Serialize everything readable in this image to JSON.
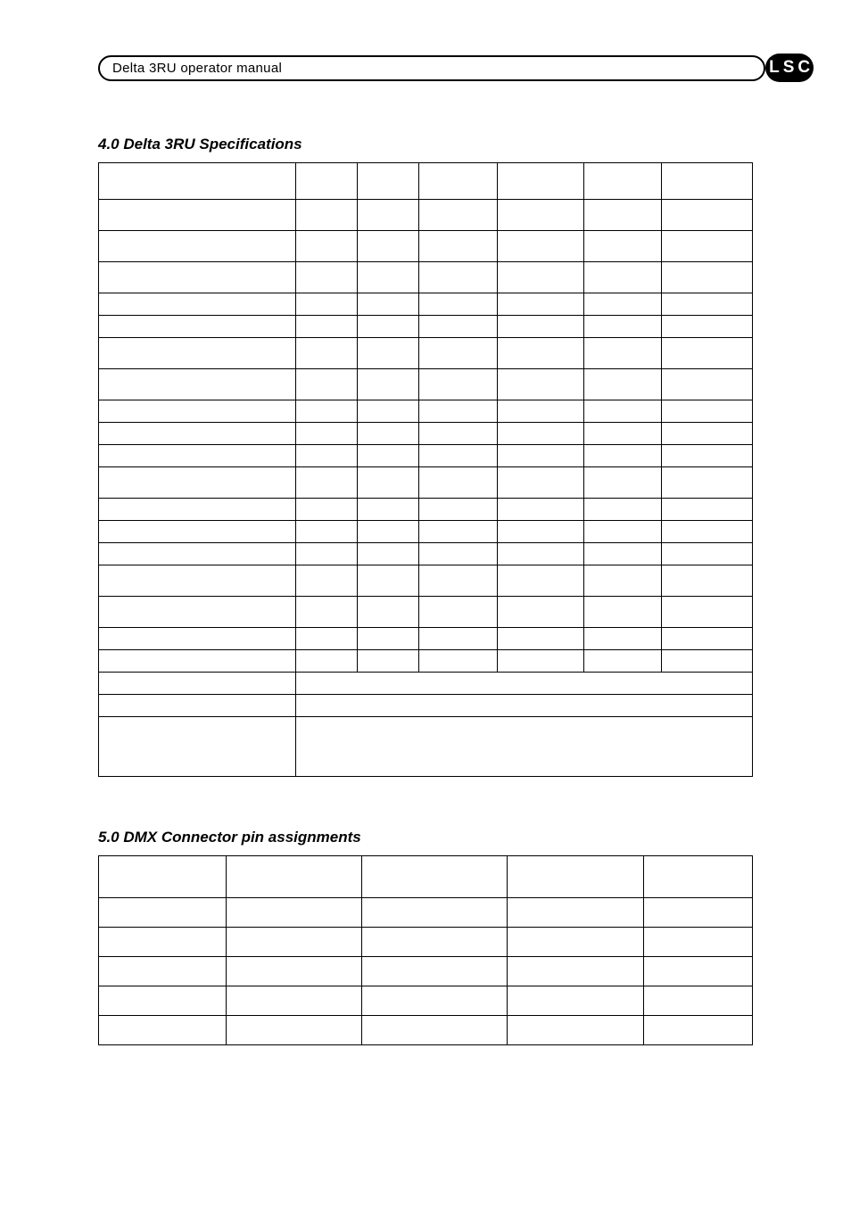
{
  "header": {
    "title": "Delta 3RU operator manual",
    "logo_text": "LSC",
    "logo_bg": "#000000",
    "logo_fg": "#ffffff"
  },
  "section4": {
    "heading": "4.0  Delta 3RU Specifications",
    "columns": [
      "",
      "",
      "",
      "",
      "",
      "",
      ""
    ],
    "rows": [
      {
        "h": "h-tall",
        "span": false,
        "cells": [
          "",
          "",
          "",
          "",
          "",
          "",
          ""
        ]
      },
      {
        "h": "h-med",
        "span": false,
        "cells": [
          "",
          "",
          "",
          "",
          "",
          "",
          ""
        ]
      },
      {
        "h": "h-med",
        "span": false,
        "cells": [
          "",
          "",
          "",
          "",
          "",
          "",
          ""
        ]
      },
      {
        "h": "h-med",
        "span": false,
        "cells": [
          "",
          "",
          "",
          "",
          "",
          "",
          ""
        ]
      },
      {
        "h": "h-sm",
        "span": false,
        "cells": [
          "",
          "",
          "",
          "",
          "",
          "",
          ""
        ]
      },
      {
        "h": "h-sm",
        "span": false,
        "cells": [
          "",
          "",
          "",
          "",
          "",
          "",
          ""
        ]
      },
      {
        "h": "h-med",
        "span": false,
        "cells": [
          "",
          "",
          "",
          "",
          "",
          "",
          ""
        ]
      },
      {
        "h": "h-med",
        "span": false,
        "cells": [
          "",
          "",
          "",
          "",
          "",
          "",
          ""
        ]
      },
      {
        "h": "h-sm",
        "span": false,
        "cells": [
          "",
          "",
          "",
          "",
          "",
          "",
          ""
        ]
      },
      {
        "h": "h-sm",
        "span": false,
        "cells": [
          "",
          "",
          "",
          "",
          "",
          "",
          ""
        ]
      },
      {
        "h": "h-sm",
        "span": false,
        "cells": [
          "",
          "",
          "",
          "",
          "",
          "",
          ""
        ]
      },
      {
        "h": "h-med",
        "span": false,
        "cells": [
          "",
          "",
          "",
          "",
          "",
          "",
          ""
        ]
      },
      {
        "h": "h-sm",
        "span": false,
        "cells": [
          "",
          "",
          "",
          "",
          "",
          "",
          ""
        ]
      },
      {
        "h": "h-sm",
        "span": false,
        "cells": [
          "",
          "",
          "",
          "",
          "",
          "",
          ""
        ]
      },
      {
        "h": "h-sm",
        "span": false,
        "cells": [
          "",
          "",
          "",
          "",
          "",
          "",
          ""
        ]
      },
      {
        "h": "h-med",
        "span": false,
        "cells": [
          "",
          "",
          "",
          "",
          "",
          "",
          ""
        ]
      },
      {
        "h": "h-med",
        "span": false,
        "cells": [
          "",
          "",
          "",
          "",
          "",
          "",
          ""
        ]
      },
      {
        "h": "h-sm",
        "span": false,
        "cells": [
          "",
          "",
          "",
          "",
          "",
          "",
          ""
        ]
      },
      {
        "h": "h-sm",
        "span": false,
        "cells": [
          "",
          "",
          "",
          "",
          "",
          "",
          ""
        ]
      },
      {
        "h": "h-sm",
        "span": true,
        "cells": [
          "",
          ""
        ]
      },
      {
        "h": "h-sm",
        "span": true,
        "cells": [
          "",
          ""
        ]
      },
      {
        "h": "h-xxl",
        "span": true,
        "cells": [
          "",
          ""
        ]
      }
    ],
    "border_color": "#000000",
    "background": "#ffffff"
  },
  "section5": {
    "heading": "5.0  DMX Connector pin assignments",
    "columns": [
      "",
      "",
      "",
      "",
      ""
    ],
    "rows": [
      {
        "h": "dmx-head",
        "cells": [
          "",
          "",
          "",
          "",
          ""
        ]
      },
      {
        "h": "",
        "cells": [
          "",
          "",
          "",
          "",
          ""
        ]
      },
      {
        "h": "",
        "cells": [
          "",
          "",
          "",
          "",
          ""
        ]
      },
      {
        "h": "",
        "cells": [
          "",
          "",
          "",
          "",
          ""
        ]
      },
      {
        "h": "",
        "cells": [
          "",
          "",
          "",
          "",
          ""
        ]
      },
      {
        "h": "",
        "cells": [
          "",
          "",
          "",
          "",
          ""
        ]
      }
    ],
    "border_color": "#000000",
    "background": "#ffffff"
  },
  "style": {
    "page_bg": "#ffffff",
    "text_color": "#000000",
    "heading_fontsize_pt": 13,
    "heading_italic": true,
    "heading_bold": true,
    "body_font": "Arial"
  }
}
